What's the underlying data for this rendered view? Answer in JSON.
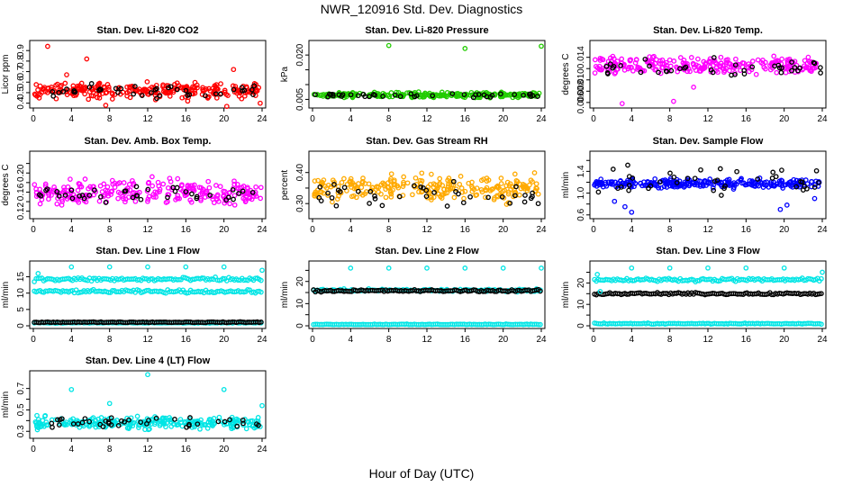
{
  "figure": {
    "title": "NWR_120916  Std. Dev. Diagnostics",
    "xlabel": "Hour of Day (UTC)"
  },
  "chart_data": [
    {
      "type": "scatter",
      "title": "Stan. Dev. Li-820 CO2",
      "ylabel": "Licor ppm",
      "xlim": [
        0,
        24
      ],
      "ylim": [
        0.38,
        0.97
      ],
      "xticks": [
        0,
        4,
        8,
        12,
        16,
        20,
        24
      ],
      "yticks": [
        0.4,
        0.5,
        0.6,
        0.7,
        0.8,
        0.9
      ],
      "series": [
        {
          "color": "#ff0000",
          "points": "dense",
          "center": 0.52,
          "spread": 0.06,
          "outliers": [
            [
              1.5,
              0.94
            ],
            [
              3.5,
              0.67
            ],
            [
              5.6,
              0.82
            ],
            [
              7.6,
              0.38
            ],
            [
              8.3,
              0.44
            ],
            [
              16.2,
              0.42
            ],
            [
              20.3,
              0.37
            ],
            [
              21,
              0.72
            ],
            [
              23.8,
              0.4
            ]
          ]
        },
        {
          "color": "#000000",
          "points": "sparse",
          "center": 0.52,
          "spread": 0.05
        }
      ]
    },
    {
      "type": "scatter",
      "title": "Stan. Dev. Li-820 Pressure",
      "ylabel": "kPa",
      "xlim": [
        0,
        24
      ],
      "ylim": [
        0.003,
        0.024
      ],
      "xticks": [
        0,
        4,
        8,
        12,
        16,
        20,
        24
      ],
      "yticks": [
        0.005,
        0.01,
        0.015,
        0.02
      ],
      "ytick_labels": [
        "0.005",
        "",
        "",
        "0.020"
      ],
      "series": [
        {
          "color": "#22cc00",
          "points": "dense",
          "center": 0.0065,
          "spread": 0.0007,
          "outliers": [
            [
              8,
              0.0232
            ],
            [
              16,
              0.0222
            ],
            [
              24,
              0.023
            ]
          ]
        },
        {
          "color": "#000000",
          "points": "sparse",
          "center": 0.0063,
          "spread": 0.0006
        }
      ]
    },
    {
      "type": "scatter",
      "title": "Stan. Dev. Li-820 Temp.",
      "ylabel": "degrees C",
      "xlim": [
        0,
        24
      ],
      "ylim": [
        0.0055,
        0.0165
      ],
      "xticks": [
        0,
        4,
        8,
        12,
        16,
        20,
        24
      ],
      "yticks": [
        0.006,
        0.008,
        0.01,
        0.012,
        0.014
      ],
      "ytick_labels": [
        "0.006",
        "0.008",
        "0.010",
        "",
        "0.014"
      ],
      "series": [
        {
          "color": "#ff00ff",
          "points": "dense",
          "center": 0.0125,
          "spread": 0.0013,
          "outliers": [
            [
              3,
              0.0058
            ],
            [
              8.4,
              0.0062
            ],
            [
              10.5,
              0.0087
            ]
          ]
        },
        {
          "color": "#000000",
          "points": "sparse",
          "center": 0.012,
          "spread": 0.0013
        }
      ]
    },
    {
      "type": "scatter",
      "title": "Stan. Dev. Amb. Box Temp.",
      "ylabel": "degrees C",
      "xlim": [
        0,
        24
      ],
      "ylim": [
        0.11,
        0.24
      ],
      "xticks": [
        0,
        4,
        8,
        12,
        16,
        20,
        24
      ],
      "yticks": [
        0.12,
        0.14,
        0.16,
        0.18,
        0.2,
        0.22
      ],
      "ytick_labels": [
        "0.12",
        "",
        "0.16",
        "",
        "0.20",
        ""
      ],
      "series": [
        {
          "color": "#ff00ff",
          "points": "dense",
          "center": 0.16,
          "spread": 0.022
        },
        {
          "color": "#000000",
          "points": "sparse",
          "center": 0.155,
          "spread": 0.015
        }
      ]
    },
    {
      "type": "scatter",
      "title": "Stan. Dev. Gas Stream RH",
      "ylabel": "percent",
      "xlim": [
        0,
        24
      ],
      "ylim": [
        0.26,
        0.46
      ],
      "xticks": [
        0,
        4,
        8,
        12,
        16,
        20,
        24
      ],
      "yticks": [
        0.3,
        0.35,
        0.4
      ],
      "ytick_labels": [
        "0.30",
        "",
        "0.40"
      ],
      "series": [
        {
          "color": "#ffaa00",
          "points": "dense",
          "center": 0.35,
          "spread": 0.035
        },
        {
          "color": "#000000",
          "points": "sparse",
          "center": 0.33,
          "spread": 0.03
        }
      ]
    },
    {
      "type": "scatter",
      "title": "Stan. Dev. Sample Flow",
      "ylabel": "ml/min",
      "xlim": [
        0,
        24
      ],
      "ylim": [
        0.58,
        1.72
      ],
      "xticks": [
        0,
        4,
        8,
        12,
        16,
        20,
        24
      ],
      "yticks": [
        0.6,
        0.8,
        1.0,
        1.2,
        1.4,
        1.6
      ],
      "ytick_labels": [
        "0.6",
        "",
        "1.0",
        "",
        "1.4",
        ""
      ],
      "series": [
        {
          "color": "#0000ff",
          "points": "dense",
          "center": 1.18,
          "spread": 0.07,
          "outliers": [
            [
              2.2,
              0.85
            ],
            [
              4,
              0.65
            ],
            [
              3.3,
              0.75
            ],
            [
              20.3,
              0.78
            ],
            [
              23.2,
              0.9
            ],
            [
              19.6,
              0.7
            ]
          ]
        },
        {
          "color": "#000000",
          "points": "sparse",
          "center": 1.25,
          "spread": 0.22
        }
      ]
    },
    {
      "type": "scatter",
      "title": "Stan. Dev. Line 1 Flow",
      "ylabel": "ml/min",
      "xlim": [
        0,
        24
      ],
      "ylim": [
        0,
        19
      ],
      "xticks": [
        0,
        4,
        8,
        12,
        16,
        20,
        24
      ],
      "yticks": [
        0,
        5,
        10,
        15
      ],
      "series": [
        {
          "color": "#00e5e5",
          "points": "band",
          "center": 14.2,
          "spread": 0.5
        },
        {
          "color": "#00e5e5",
          "points": "band",
          "center": 10.5,
          "spread": 0.4
        },
        {
          "color": "#00e5e5",
          "points": "band",
          "center": 0.9,
          "spread": 0.1
        },
        {
          "color": "#000000",
          "points": "band",
          "center": 1.1,
          "spread": 0.1
        },
        {
          "color": "#00e5e5",
          "points": "sparse",
          "center": 17.8,
          "spread": 0.3,
          "outliers": [
            [
              0.5,
              16
            ],
            [
              4,
              18
            ],
            [
              8,
              18
            ],
            [
              12,
              18
            ],
            [
              16,
              18
            ],
            [
              20,
              18
            ],
            [
              24,
              17
            ]
          ]
        }
      ]
    },
    {
      "type": "scatter",
      "title": "Stan. Dev. Line 2 Flow",
      "ylabel": "ml/min",
      "xlim": [
        0,
        24
      ],
      "ylim": [
        0,
        28
      ],
      "xticks": [
        0,
        4,
        8,
        12,
        16,
        20,
        24
      ],
      "yticks": [
        0,
        5,
        10,
        15,
        20,
        25
      ],
      "ytick_labels": [
        "0",
        "",
        "10",
        "",
        "20",
        ""
      ],
      "series": [
        {
          "color": "#00e5e5",
          "points": "band",
          "center": 16,
          "spread": 0.5
        },
        {
          "color": "#000000",
          "points": "band",
          "center": 15.8,
          "spread": 0.4
        },
        {
          "color": "#00e5e5",
          "points": "band",
          "center": 0.6,
          "spread": 0.2
        },
        {
          "color": "#00e5e5",
          "points": "sparse",
          "center": 26,
          "spread": 0.2,
          "outliers": [
            [
              4,
              26
            ],
            [
              8,
              26
            ],
            [
              12,
              26
            ],
            [
              16,
              26
            ],
            [
              20,
              26
            ],
            [
              24,
              26
            ]
          ]
        }
      ]
    },
    {
      "type": "scatter",
      "title": "Stan. Dev. Line 3 Flow",
      "ylabel": "ml/min",
      "xlim": [
        0,
        24
      ],
      "ylim": [
        0,
        29
      ],
      "xticks": [
        0,
        4,
        8,
        12,
        16,
        20,
        24
      ],
      "yticks": [
        0,
        5,
        10,
        15,
        20,
        25
      ],
      "ytick_labels": [
        "0",
        "",
        "10",
        "",
        "20",
        ""
      ],
      "series": [
        {
          "color": "#00e5e5",
          "points": "band",
          "center": 21.5,
          "spread": 0.6
        },
        {
          "color": "#000000",
          "points": "band",
          "center": 15,
          "spread": 0.4
        },
        {
          "color": "#00e5e5",
          "points": "band",
          "center": 1,
          "spread": 0.2
        },
        {
          "color": "#00e5e5",
          "points": "sparse",
          "center": 27,
          "spread": 0.3,
          "outliers": [
            [
              0.4,
              24
            ],
            [
              0.7,
              16
            ],
            [
              4,
              27
            ],
            [
              8,
              27
            ],
            [
              12,
              27
            ],
            [
              16,
              27
            ],
            [
              20,
              27
            ],
            [
              24,
              25
            ]
          ]
        }
      ]
    },
    {
      "type": "scatter",
      "title": "Stan. Dev. Line 4 (LT) Flow",
      "ylabel": "ml/min",
      "xlim": [
        0,
        24
      ],
      "ylim": [
        0.26,
        0.84
      ],
      "xticks": [
        0,
        4,
        8,
        12,
        16,
        20,
        24
      ],
      "yticks": [
        0.3,
        0.4,
        0.5,
        0.6,
        0.7
      ],
      "ytick_labels": [
        "0.3",
        "",
        "0.5",
        "",
        "0.7"
      ],
      "series": [
        {
          "color": "#00e5e5",
          "points": "dense",
          "center": 0.38,
          "spread": 0.045,
          "outliers": [
            [
              4,
              0.69
            ],
            [
              8,
              0.56
            ],
            [
              12,
              0.83
            ],
            [
              20,
              0.69
            ],
            [
              24,
              0.54
            ]
          ]
        },
        {
          "color": "#000000",
          "points": "sparse",
          "center": 0.38,
          "spread": 0.05
        }
      ]
    }
  ]
}
